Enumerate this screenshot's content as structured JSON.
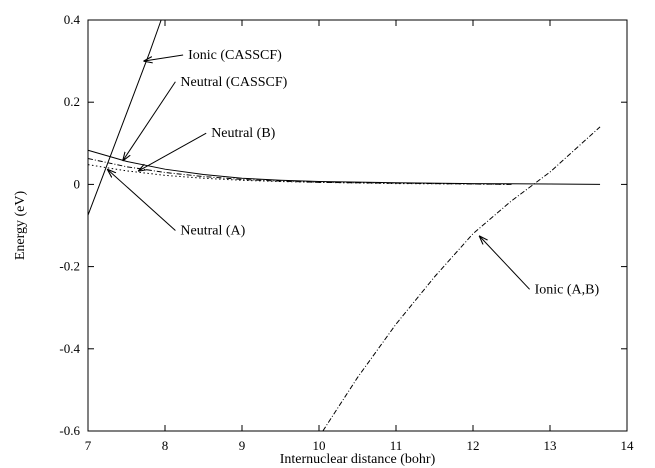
{
  "chart_data": {
    "type": "line",
    "title": "",
    "xlabel": "Internuclear distance (bohr)",
    "ylabel": "Energy (eV)",
    "xlim": [
      7,
      14
    ],
    "ylim": [
      -0.6,
      0.4
    ],
    "xticks": [
      7,
      8,
      9,
      10,
      11,
      12,
      13,
      14
    ],
    "xtick_labels": [
      "7",
      "8",
      "9",
      "10",
      "11",
      "12",
      "13",
      "14"
    ],
    "yticks": [
      -0.6,
      -0.4,
      -0.2,
      0,
      0.2,
      0.4
    ],
    "ytick_labels": [
      "-0.6",
      "-0.4",
      "-0.2",
      "0",
      "0.2",
      "0.4"
    ],
    "grid": false,
    "series": [
      {
        "name": "Ionic (CASSCF)",
        "style": "solid",
        "x": [
          7.0,
          7.2,
          7.4,
          7.6,
          7.8,
          7.95
        ],
        "y": [
          -0.075,
          0.024,
          0.123,
          0.222,
          0.321,
          0.4
        ]
      },
      {
        "name": "Neutral (CASSCF)",
        "style": "solid",
        "x": [
          7.0,
          7.5,
          8.0,
          8.5,
          9.0,
          9.5,
          10.0,
          11.0,
          12.0,
          13.0,
          13.65
        ],
        "y": [
          0.083,
          0.056,
          0.037,
          0.024,
          0.015,
          0.01,
          0.007,
          0.004,
          0.002,
          0.001,
          0.0
        ]
      },
      {
        "name": "Neutral (B)",
        "style": "dashdot",
        "x": [
          7.0,
          7.5,
          8.0,
          8.5,
          9.0,
          9.5,
          10.0,
          11.0,
          12.0,
          12.5
        ],
        "y": [
          0.063,
          0.043,
          0.029,
          0.019,
          0.012,
          0.008,
          0.005,
          0.003,
          0.001,
          0.0
        ]
      },
      {
        "name": "Neutral (A)",
        "style": "dotted",
        "x": [
          7.0,
          7.5,
          8.0,
          8.5,
          9.0,
          9.5,
          10.0,
          11.0,
          12.0,
          12.5
        ],
        "y": [
          0.048,
          0.033,
          0.022,
          0.015,
          0.01,
          0.007,
          0.005,
          0.002,
          0.001,
          0.0
        ]
      },
      {
        "name": "Ionic (A,B)",
        "style": "dashdot",
        "x": [
          10.05,
          10.5,
          11.0,
          11.5,
          12.0,
          12.5,
          13.0,
          13.65
        ],
        "y": [
          -0.6,
          -0.47,
          -0.34,
          -0.225,
          -0.12,
          -0.04,
          0.03,
          0.14
        ]
      }
    ],
    "annotations": [
      {
        "text": "Ionic (CASSCF)",
        "tx": 8.3,
        "ty": 0.305,
        "anchor": "start",
        "ax": 7.72,
        "ay": 0.3
      },
      {
        "text": "Neutral (CASSCF)",
        "tx": 8.2,
        "ty": 0.24,
        "anchor": "start",
        "ax": 7.45,
        "ay": 0.057
      },
      {
        "text": "Neutral (B)",
        "tx": 8.6,
        "ty": 0.115,
        "anchor": "start",
        "ax": 7.65,
        "ay": 0.032
      },
      {
        "text": "Neutral (A)",
        "tx": 8.2,
        "ty": -0.122,
        "anchor": "start",
        "ax": 7.25,
        "ay": 0.037
      },
      {
        "text": "Ionic (A,B)",
        "tx": 12.8,
        "ty": -0.265,
        "anchor": "start",
        "ax": 12.08,
        "ay": -0.125
      }
    ]
  }
}
